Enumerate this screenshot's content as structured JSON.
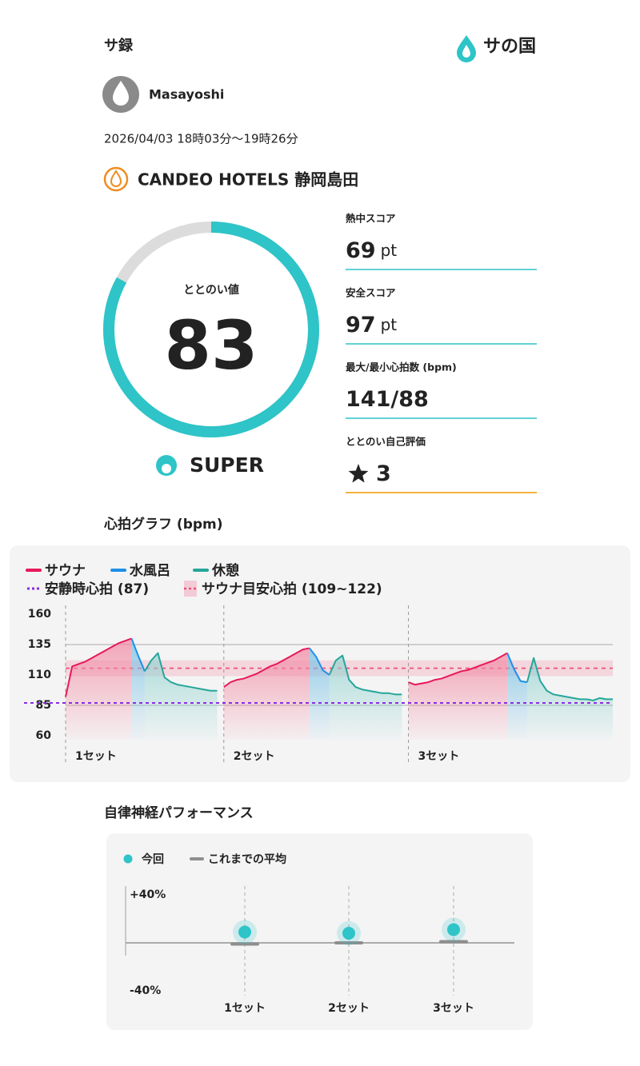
{
  "header": {
    "title": "サ録",
    "logo": "サの国"
  },
  "user": {
    "name": "Masayoshi"
  },
  "session": {
    "datetime": "2026/04/03 18時03分〜19時26分",
    "facility": "CANDEO HOTELS 静岡島田"
  },
  "score": {
    "label": "ととのい値",
    "value": 83,
    "max": 100,
    "rank": "SUPER",
    "color": "#2ec4c8"
  },
  "stats": [
    {
      "label": "熱中スコア",
      "value": 69,
      "unit": "pt",
      "color": "#2ec4c8"
    },
    {
      "label": "安全スコア",
      "value": 97,
      "unit": "pt",
      "color": "#2ec4c8"
    },
    {
      "label": "最大/最小心拍数 (bpm)",
      "value": "141/88",
      "color": "#2ec4c8"
    },
    {
      "label": "ととのい自己評価",
      "value": 3,
      "icon": "star",
      "color": "#f39800"
    }
  ],
  "chart_data": [
    {
      "type": "line",
      "title": "心拍グラフ (bpm)",
      "x": [
        0,
        1,
        2,
        3,
        4,
        5,
        6,
        7,
        8,
        9,
        10,
        11,
        12,
        13,
        14,
        15,
        16,
        17,
        18,
        19,
        20,
        21,
        22,
        23,
        24,
        25,
        26,
        27,
        28,
        29,
        30,
        31,
        32,
        33,
        34,
        35,
        36,
        37,
        38,
        39,
        40,
        41,
        42,
        43,
        44,
        45,
        46,
        47,
        48,
        49,
        50,
        51,
        52,
        53,
        54,
        55,
        56,
        57,
        58,
        59,
        60,
        61,
        62,
        63,
        64,
        65,
        66,
        67,
        68,
        69,
        70,
        71,
        72,
        73,
        74,
        75,
        76,
        77,
        78,
        79,
        80,
        81,
        82,
        83
      ],
      "xlim": [
        0,
        83
      ],
      "ylim": [
        60,
        160
      ],
      "yticks": [
        60,
        85,
        110,
        135,
        160
      ],
      "grid_values": [
        85,
        135
      ],
      "series": [
        {
          "name": "サウナ",
          "color": "#e8185a",
          "values": [
            92,
            117,
            119,
            121,
            124,
            127,
            130,
            133,
            136,
            138,
            140,
            null,
            null,
            null,
            null,
            null,
            null,
            null,
            null,
            null,
            null,
            null,
            null,
            null,
            100,
            104,
            106,
            107,
            109,
            111,
            114,
            117,
            119,
            122,
            125,
            128,
            131,
            132,
            null,
            null,
            null,
            null,
            null,
            null,
            null,
            null,
            null,
            null,
            null,
            null,
            null,
            null,
            104,
            102,
            103,
            104,
            106,
            107,
            109,
            111,
            113,
            114,
            116,
            118,
            120,
            122,
            125,
            128,
            null,
            null,
            null,
            null,
            null,
            null,
            null,
            null,
            null,
            null,
            null,
            null,
            null,
            null,
            null,
            null
          ]
        },
        {
          "name": "水風呂",
          "color": "#1e90e8",
          "values": [
            null,
            null,
            null,
            null,
            null,
            null,
            null,
            null,
            null,
            null,
            140,
            126,
            113,
            null,
            null,
            null,
            null,
            null,
            null,
            null,
            null,
            null,
            null,
            null,
            null,
            null,
            null,
            null,
            null,
            null,
            null,
            null,
            null,
            null,
            null,
            null,
            null,
            132,
            125,
            114,
            110,
            null,
            null,
            null,
            null,
            null,
            null,
            null,
            null,
            null,
            null,
            null,
            null,
            null,
            null,
            null,
            null,
            null,
            null,
            null,
            null,
            null,
            null,
            null,
            null,
            null,
            null,
            128,
            115,
            105,
            104,
            null,
            null,
            null,
            null,
            null,
            null,
            null,
            null,
            null,
            null,
            null,
            null,
            null
          ]
        },
        {
          "name": "休憩",
          "color": "#26a69a",
          "values": [
            null,
            null,
            null,
            null,
            null,
            null,
            null,
            null,
            null,
            null,
            null,
            null,
            113,
            122,
            128,
            108,
            104,
            102,
            101,
            100,
            99,
            98,
            97,
            97,
            null,
            null,
            null,
            null,
            null,
            null,
            null,
            null,
            null,
            null,
            null,
            null,
            null,
            null,
            null,
            null,
            110,
            122,
            126,
            106,
            100,
            98,
            97,
            96,
            95,
            95,
            94,
            94,
            null,
            null,
            null,
            null,
            null,
            null,
            null,
            null,
            null,
            null,
            null,
            null,
            null,
            null,
            null,
            null,
            null,
            null,
            104,
            124,
            105,
            97,
            94,
            93,
            92,
            91,
            90,
            90,
            89,
            91,
            90,
            90
          ]
        }
      ],
      "reference_lines": [
        {
          "name": "安静時心拍 (87)",
          "value": 87,
          "color": "#8a2be2"
        }
      ],
      "target_band": {
        "name": "サウナ目安心拍 (109~122)",
        "range": [
          109,
          122
        ],
        "color": "#f0507a"
      },
      "sets": [
        {
          "label": "1セット",
          "start": 0
        },
        {
          "label": "2セット",
          "start": 24
        },
        {
          "label": "3セット",
          "start": 52
        }
      ]
    },
    {
      "type": "dot",
      "title": "自律神経パフォーマンス",
      "categories": [
        "1セット",
        "2セット",
        "3セット"
      ],
      "ylim": [
        -40,
        40
      ],
      "yticks": [
        {
          "value": 40,
          "label": "+40%"
        },
        {
          "value": -40,
          "label": "-40%"
        }
      ],
      "series": [
        {
          "name": "今回",
          "color": "#2ec4c8",
          "values": [
            9,
            8,
            11
          ]
        },
        {
          "name": "これまでの平均",
          "color": "#8e8e8e",
          "values": [
            -1,
            0,
            1
          ]
        }
      ]
    }
  ]
}
